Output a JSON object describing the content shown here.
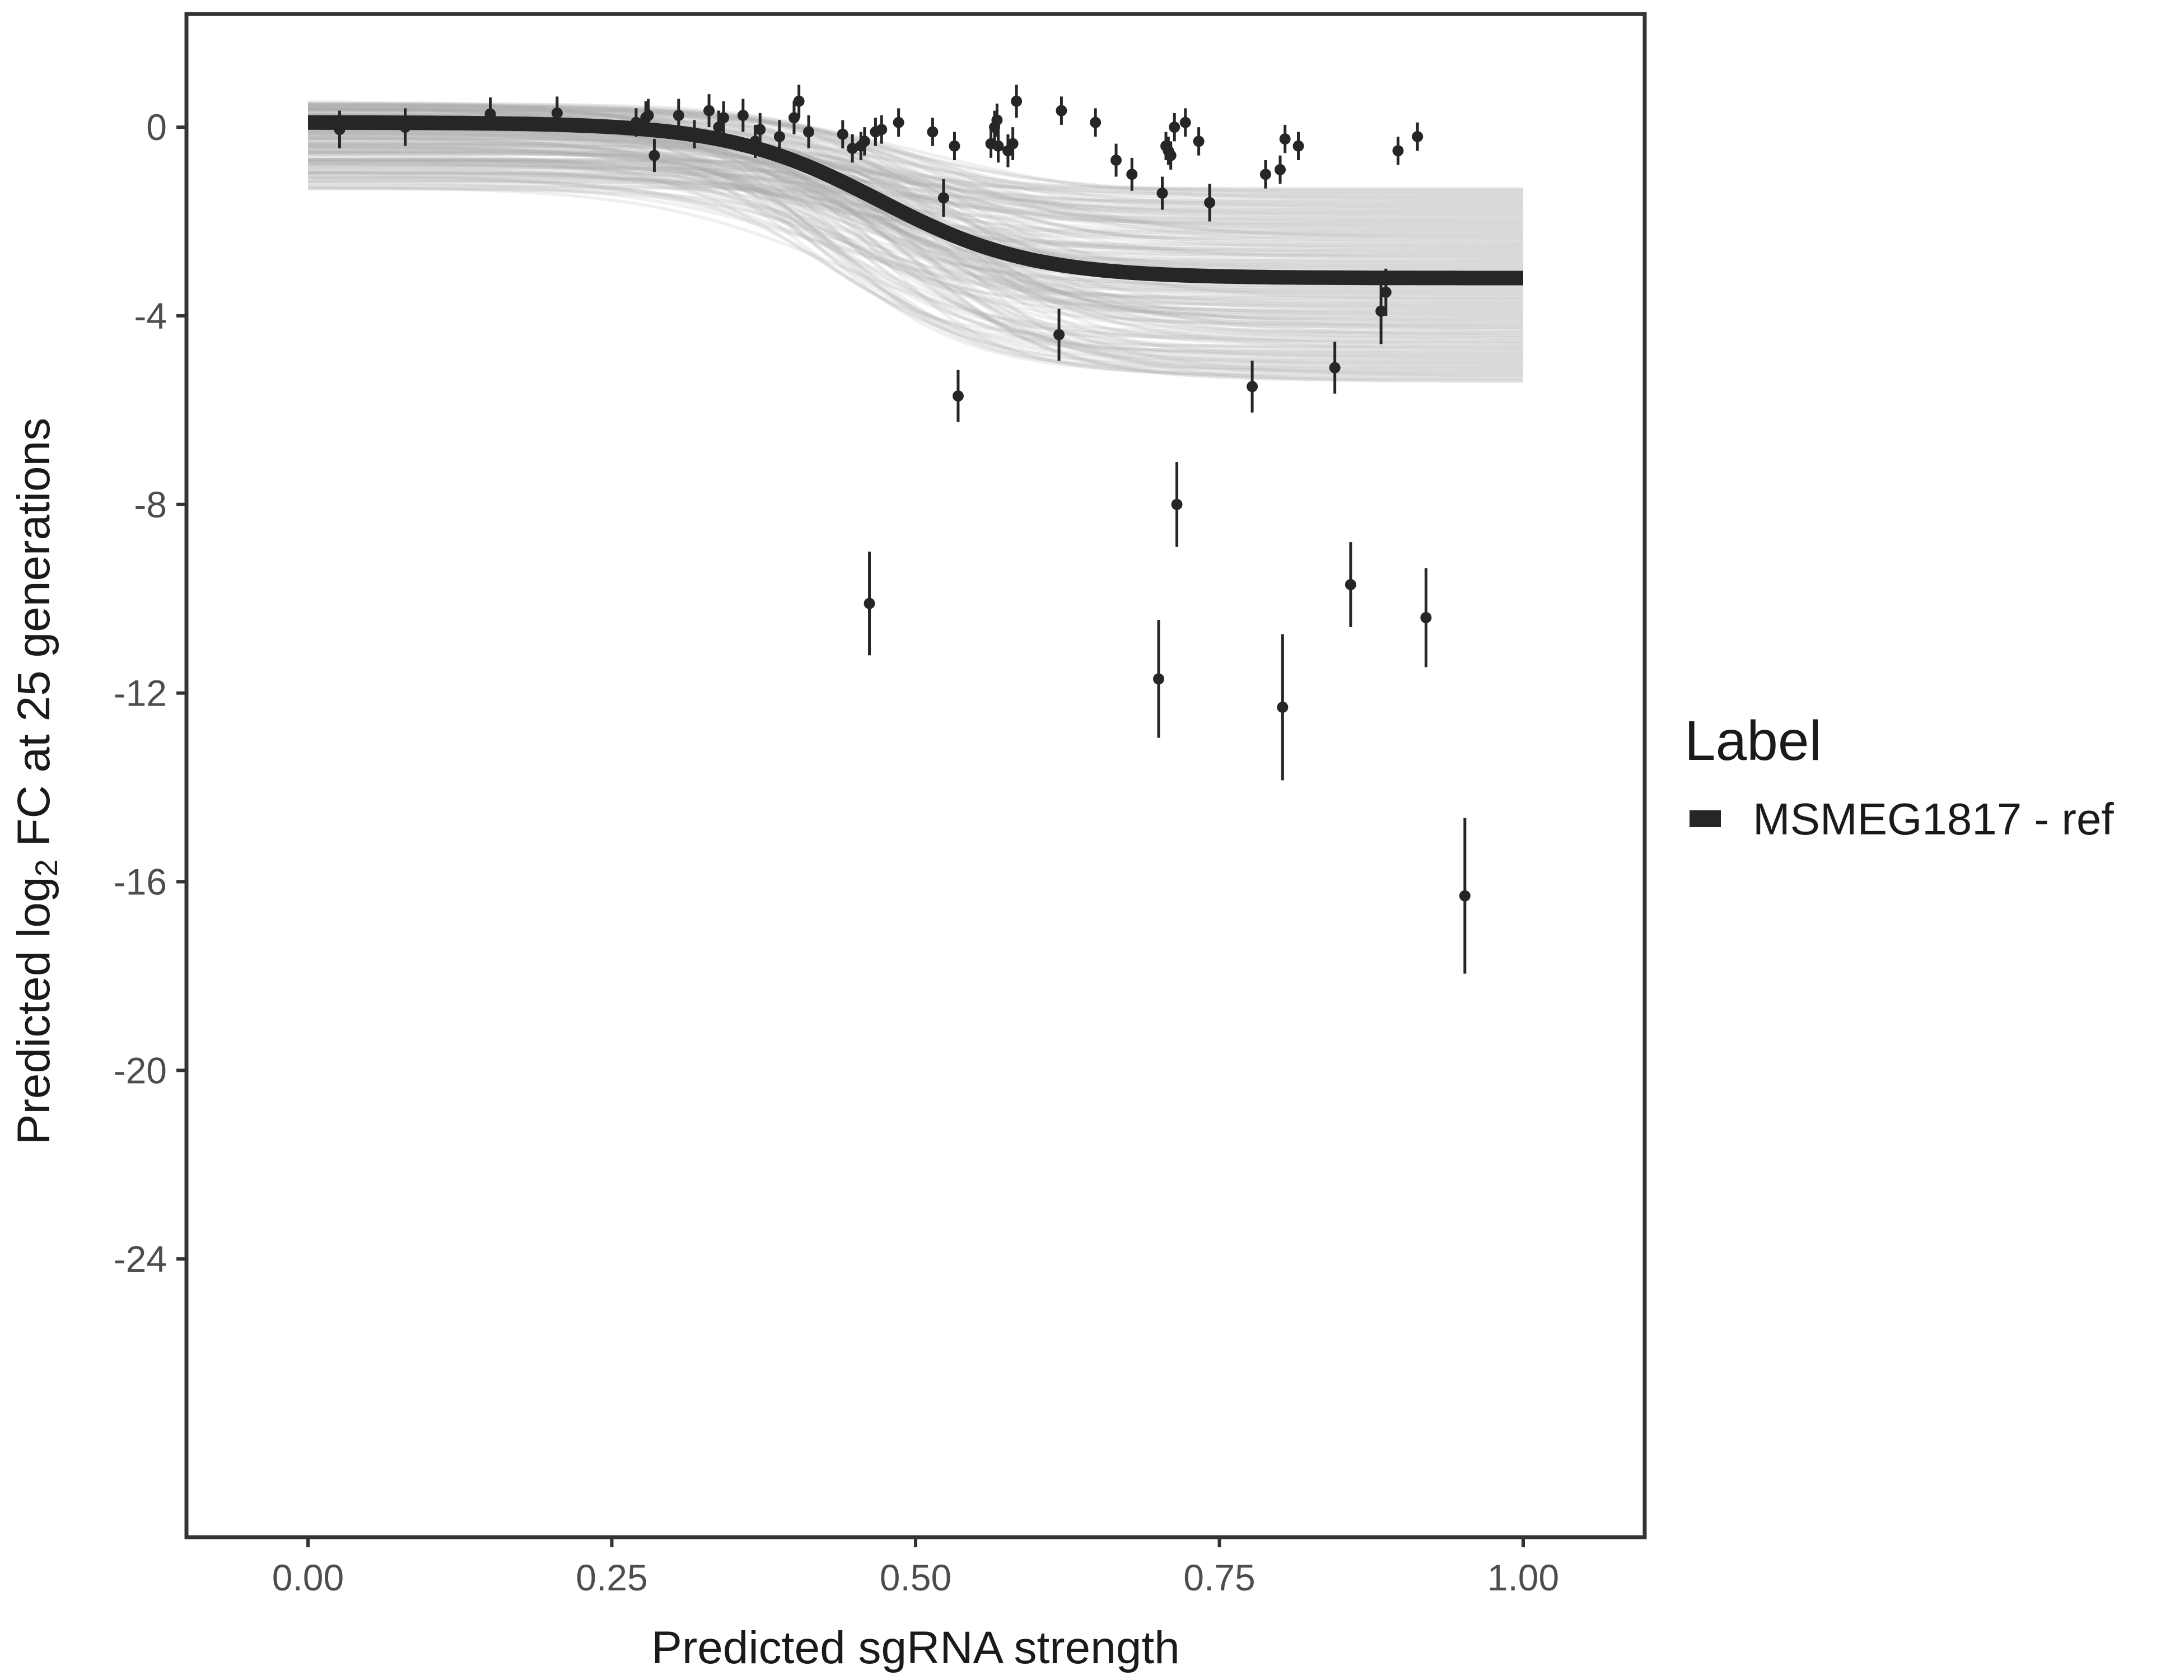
{
  "chart_data": {
    "type": "scatter",
    "xlabel": "Predicted sgRNA strength",
    "ylabel_parts": [
      "Predicted  log",
      "2",
      " FC at 25 generations"
    ],
    "xlim": [
      -0.1,
      1.1
    ],
    "ylim": [
      -29.9,
      2.4
    ],
    "x_ticks": [
      0.0,
      0.25,
      0.5,
      0.75,
      1.0
    ],
    "x_tick_labels": [
      "0.00",
      "0.25",
      "0.50",
      "0.75",
      "1.00"
    ],
    "y_ticks": [
      0,
      -4,
      -8,
      -12,
      -16,
      -20,
      -24
    ],
    "y_tick_labels": [
      "0",
      "-4",
      "-8",
      "-12",
      "-16",
      "-20",
      "-24"
    ],
    "grid": false,
    "legend": {
      "title": "Label",
      "position": "right",
      "entries": [
        {
          "label": "MSMEG1817 - ref",
          "color": "#262626"
        }
      ]
    },
    "fit_curve": {
      "color": "#262626",
      "upper_asymptote": 0.1,
      "lower_asymptote": -3.2,
      "midpoint": 0.47,
      "slope": 16
    },
    "posterior_band": {
      "color": "#aaaaaa",
      "upper_left": 0.55,
      "upper_right": -1.3,
      "lower_left": -1.3,
      "lower_right": -5.4
    },
    "points": [
      {
        "x": 0.026,
        "y": -0.05,
        "err": 0.4
      },
      {
        "x": 0.08,
        "y": 0.0,
        "err": 0.4
      },
      {
        "x": 0.15,
        "y": 0.28,
        "err": 0.35
      },
      {
        "x": 0.205,
        "y": 0.3,
        "err": 0.35
      },
      {
        "x": 0.27,
        "y": 0.1,
        "err": 0.3
      },
      {
        "x": 0.278,
        "y": 0.2,
        "err": 0.35
      },
      {
        "x": 0.28,
        "y": 0.25,
        "err": 0.35
      },
      {
        "x": 0.285,
        "y": -0.6,
        "err": 0.35
      },
      {
        "x": 0.305,
        "y": 0.25,
        "err": 0.35
      },
      {
        "x": 0.318,
        "y": -0.15,
        "err": 0.3
      },
      {
        "x": 0.33,
        "y": 0.35,
        "err": 0.35
      },
      {
        "x": 0.338,
        "y": 0.0,
        "err": 0.35
      },
      {
        "x": 0.342,
        "y": 0.2,
        "err": 0.35
      },
      {
        "x": 0.358,
        "y": 0.25,
        "err": 0.35
      },
      {
        "x": 0.368,
        "y": -0.3,
        "err": 0.35
      },
      {
        "x": 0.372,
        "y": -0.05,
        "err": 0.35
      },
      {
        "x": 0.388,
        "y": -0.2,
        "err": 0.35
      },
      {
        "x": 0.4,
        "y": 0.2,
        "err": 0.35
      },
      {
        "x": 0.404,
        "y": 0.55,
        "err": 0.35
      },
      {
        "x": 0.412,
        "y": -0.1,
        "err": 0.35
      },
      {
        "x": 0.44,
        "y": -0.15,
        "err": 0.3
      },
      {
        "x": 0.448,
        "y": -0.45,
        "err": 0.3
      },
      {
        "x": 0.455,
        "y": -0.4,
        "err": 0.3
      },
      {
        "x": 0.458,
        "y": -0.3,
        "err": 0.3
      },
      {
        "x": 0.462,
        "y": -10.1,
        "err": 1.1
      },
      {
        "x": 0.467,
        "y": -0.1,
        "err": 0.3
      },
      {
        "x": 0.472,
        "y": -0.05,
        "err": 0.3
      },
      {
        "x": 0.486,
        "y": 0.1,
        "err": 0.3
      },
      {
        "x": 0.514,
        "y": -0.1,
        "err": 0.3
      },
      {
        "x": 0.523,
        "y": -1.5,
        "err": 0.4
      },
      {
        "x": 0.532,
        "y": -0.4,
        "err": 0.3
      },
      {
        "x": 0.535,
        "y": -5.7,
        "err": 0.55
      },
      {
        "x": 0.562,
        "y": -0.35,
        "err": 0.3
      },
      {
        "x": 0.565,
        "y": 0.0,
        "err": 0.35
      },
      {
        "x": 0.567,
        "y": 0.15,
        "err": 0.35
      },
      {
        "x": 0.568,
        "y": -0.4,
        "err": 0.35
      },
      {
        "x": 0.576,
        "y": -0.5,
        "err": 0.35
      },
      {
        "x": 0.58,
        "y": -0.35,
        "err": 0.35
      },
      {
        "x": 0.583,
        "y": 0.55,
        "err": 0.35
      },
      {
        "x": 0.618,
        "y": -4.4,
        "err": 0.55
      },
      {
        "x": 0.62,
        "y": 0.35,
        "err": 0.3
      },
      {
        "x": 0.648,
        "y": 0.1,
        "err": 0.3
      },
      {
        "x": 0.665,
        "y": -0.7,
        "err": 0.35
      },
      {
        "x": 0.678,
        "y": -1.0,
        "err": 0.35
      },
      {
        "x": 0.7,
        "y": -11.7,
        "err": 1.25
      },
      {
        "x": 0.703,
        "y": -1.4,
        "err": 0.35
      },
      {
        "x": 0.706,
        "y": -0.4,
        "err": 0.3
      },
      {
        "x": 0.708,
        "y": -0.5,
        "err": 0.3
      },
      {
        "x": 0.71,
        "y": -0.6,
        "err": 0.3
      },
      {
        "x": 0.713,
        "y": 0.0,
        "err": 0.3
      },
      {
        "x": 0.715,
        "y": -8.0,
        "err": 0.9
      },
      {
        "x": 0.722,
        "y": 0.1,
        "err": 0.3
      },
      {
        "x": 0.733,
        "y": -0.3,
        "err": 0.3
      },
      {
        "x": 0.742,
        "y": -1.6,
        "err": 0.4
      },
      {
        "x": 0.777,
        "y": -5.5,
        "err": 0.55
      },
      {
        "x": 0.788,
        "y": -1.0,
        "err": 0.3
      },
      {
        "x": 0.8,
        "y": -0.9,
        "err": 0.3
      },
      {
        "x": 0.802,
        "y": -12.3,
        "err": 1.55
      },
      {
        "x": 0.804,
        "y": -0.25,
        "err": 0.3
      },
      {
        "x": 0.815,
        "y": -0.4,
        "err": 0.3
      },
      {
        "x": 0.845,
        "y": -5.1,
        "err": 0.55
      },
      {
        "x": 0.858,
        "y": -9.7,
        "err": 0.9
      },
      {
        "x": 0.883,
        "y": -3.9,
        "err": 0.7
      },
      {
        "x": 0.887,
        "y": -3.5,
        "err": 0.5
      },
      {
        "x": 0.897,
        "y": -0.5,
        "err": 0.3
      },
      {
        "x": 0.913,
        "y": -0.2,
        "err": 0.3
      },
      {
        "x": 0.92,
        "y": -10.4,
        "err": 1.05
      },
      {
        "x": 0.952,
        "y": -16.3,
        "err": 1.65
      }
    ]
  }
}
